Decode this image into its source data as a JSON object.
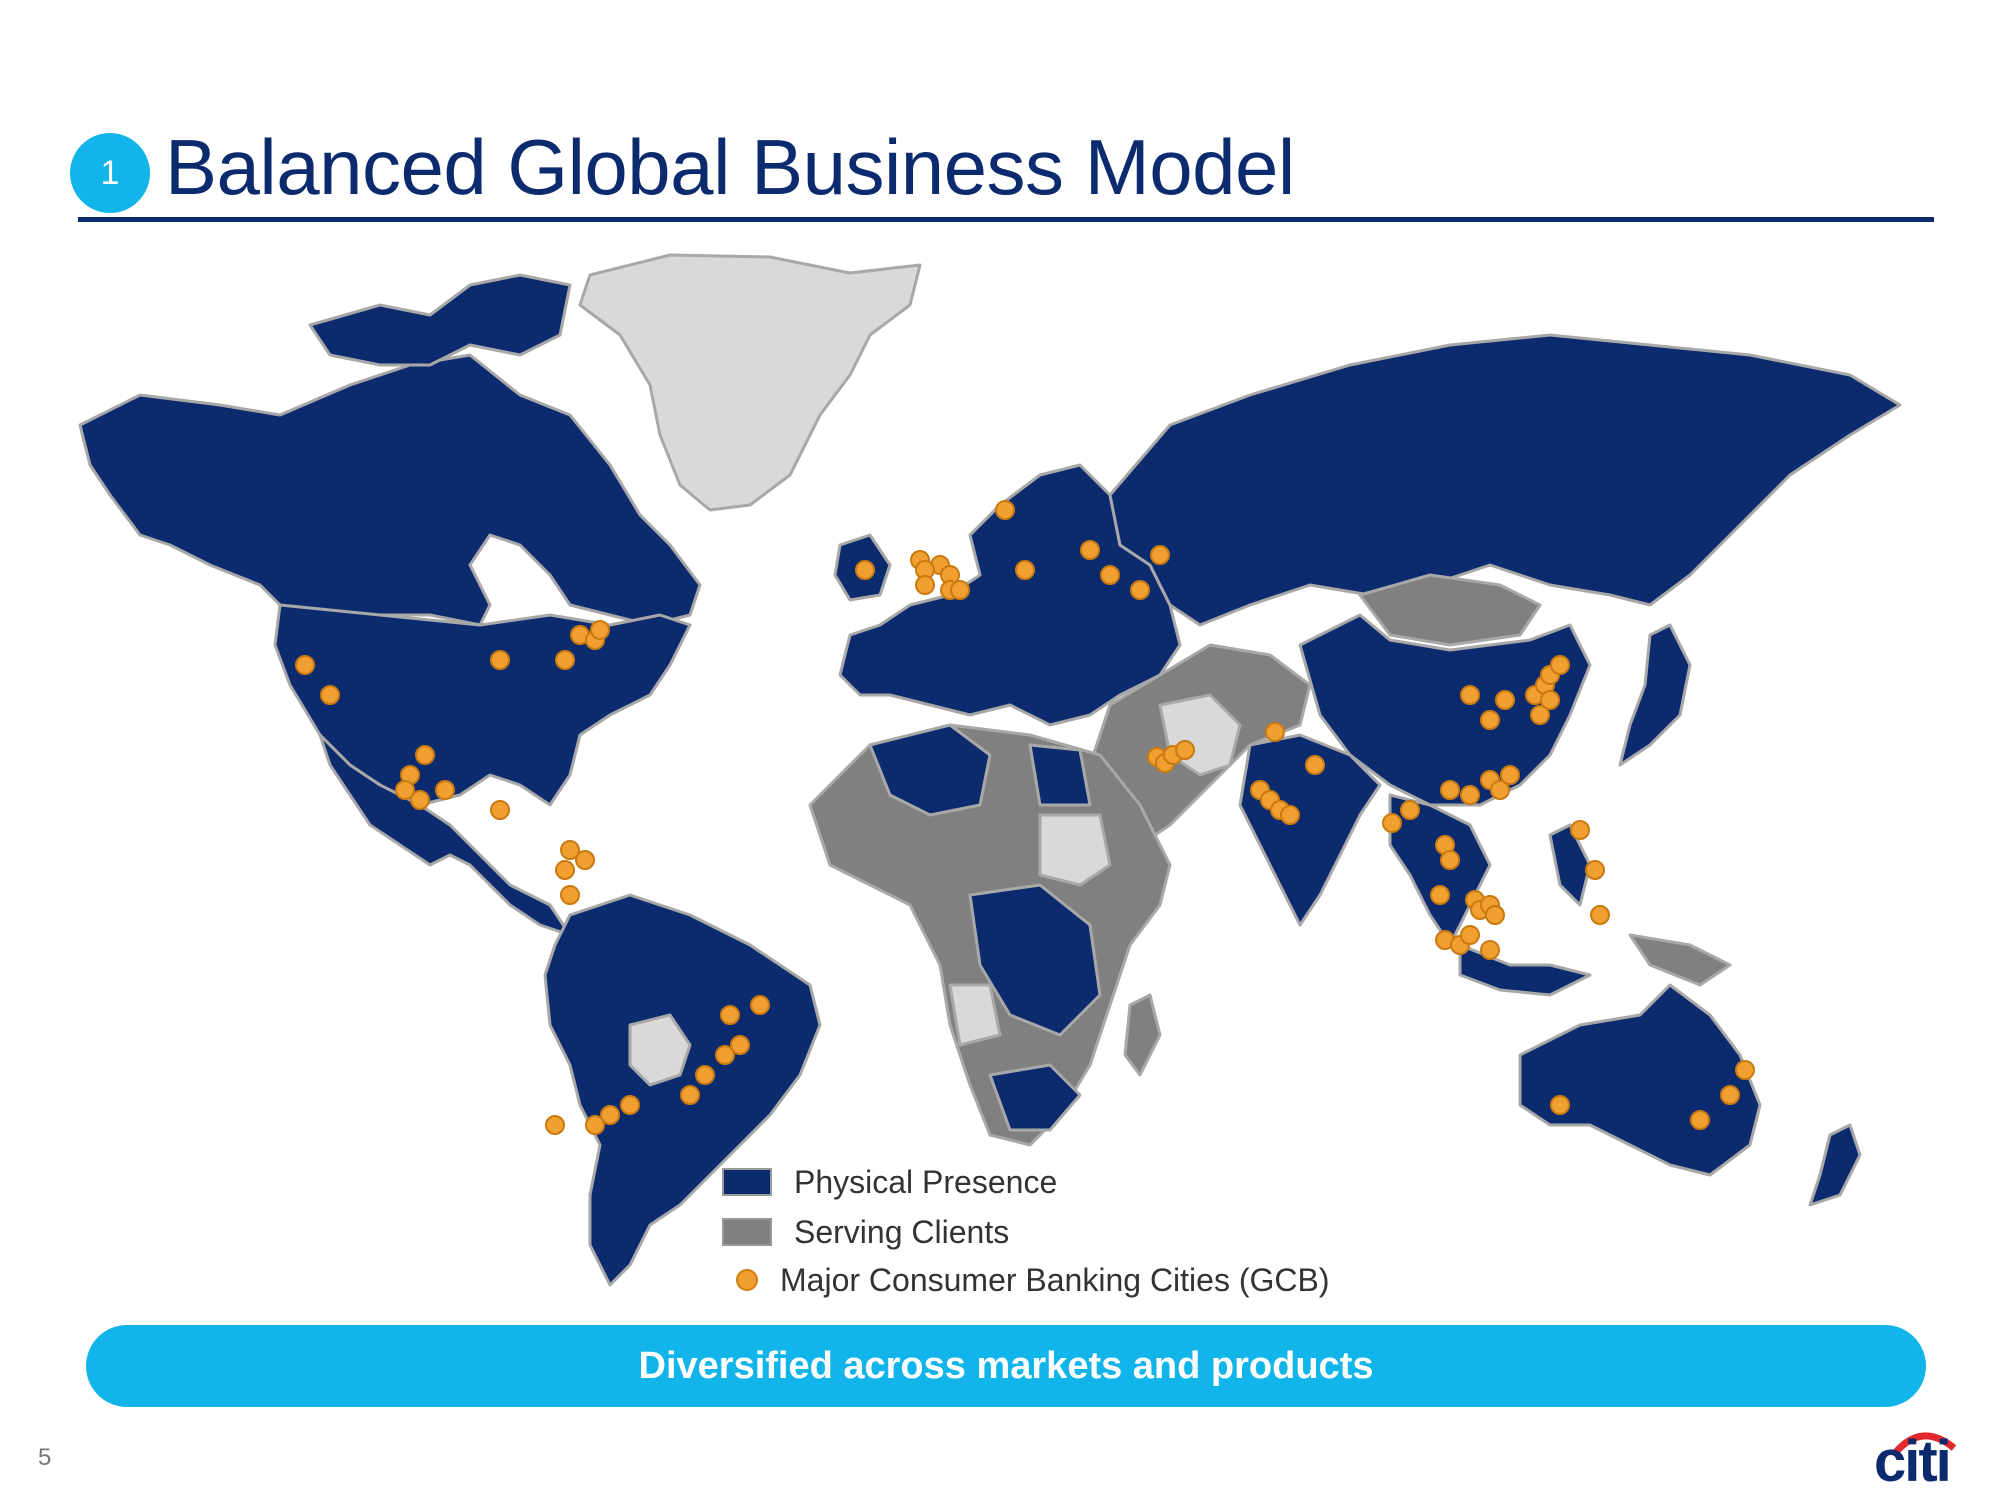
{
  "slide": {
    "number_badge": "1",
    "title": "Balanced Global Business Model",
    "page_number": "5"
  },
  "legend": {
    "physical_presence": "Physical Presence",
    "serving_clients": "Serving Clients",
    "gcb_cities": "Major Consumer Banking Cities (GCB)"
  },
  "banner": {
    "text": "Diversified across markets and products"
  },
  "logo": {
    "text": "citi"
  },
  "colors": {
    "physical_presence": "#0c2b6e",
    "serving_clients": "#808080",
    "no_presence": "#d9d9d9",
    "gcb_city": "#f0a030",
    "accent": "#12b5ea",
    "logo_arc": "#e3282d"
  },
  "map_regions": {
    "physical_presence": [
      "North America",
      "Central America",
      "South America (most)",
      "Western Europe",
      "Eastern Europe",
      "Russia",
      "China",
      "India",
      "Southeast Asia",
      "Japan",
      "Korea",
      "Australia",
      "New Zealand",
      "parts of Africa"
    ],
    "serving_clients": [
      "Mongolia",
      "Central Asia",
      "Middle East",
      "much of Africa",
      "Papua New Guinea",
      "Myanmar"
    ],
    "no_presence": [
      "Greenland",
      "Iran",
      "Sudan",
      "Bolivia",
      "Angola",
      "Zimbabwe"
    ]
  }
}
